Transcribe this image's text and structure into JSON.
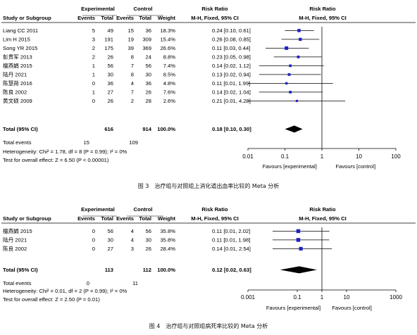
{
  "figures": [
    {
      "caption": "图 3　治疗组与对照组上消化道出血率比较的 Meta 分析",
      "headers": {
        "group_experimental": "Experimental",
        "group_control": "Control",
        "rr_top": "Risk Ratio",
        "rr_bottom": "M-H, Fixed, 95% CI",
        "plot_top": "Risk Ratio",
        "plot_bottom": "M-H, Fixed, 95% CI",
        "study": "Study or Subgroup",
        "events": "Events",
        "total": "Total",
        "weight": "Weight"
      },
      "studies": [
        {
          "name": "Liang CC 2011",
          "e_events": "5",
          "e_total": "49",
          "c_events": "15",
          "c_total": "36",
          "weight": "18.3%",
          "ci_text": "0.24 [0.10, 0.61]"
        },
        {
          "name": "Lim H 2015",
          "e_events": "3",
          "e_total": "191",
          "c_events": "19",
          "c_total": "309",
          "weight": "15.4%",
          "ci_text": "0.26 [0.08, 0.85]"
        },
        {
          "name": "Song YR 2015",
          "e_events": "2",
          "e_total": "175",
          "c_events": "39",
          "c_total": "369",
          "weight": "26.6%",
          "ci_text": "0.11 [0.03, 0.44]"
        },
        {
          "name": "彭贵军 2013",
          "e_events": "2",
          "e_total": "26",
          "c_events": "8",
          "c_total": "24",
          "weight": "8.8%",
          "ci_text": "0.23 [0.05, 0.98]"
        },
        {
          "name": "檀燕娟 2015",
          "e_events": "1",
          "e_total": "56",
          "c_events": "7",
          "c_total": "56",
          "weight": "7.4%",
          "ci_text": "0.14 [0.02, 1.12]"
        },
        {
          "name": "陆丹 2021",
          "e_events": "1",
          "e_total": "30",
          "c_events": "8",
          "c_total": "30",
          "weight": "8.5%",
          "ci_text": "0.13 [0.02, 0.94]"
        },
        {
          "name": "陈慧荷 2016",
          "e_events": "0",
          "e_total": "36",
          "c_events": "4",
          "c_total": "36",
          "weight": "4.8%",
          "ci_text": "0.11 [0.01, 1.99]"
        },
        {
          "name": "陈良 2002",
          "e_events": "1",
          "e_total": "27",
          "c_events": "7",
          "c_total": "26",
          "weight": "7.6%",
          "ci_text": "0.14 [0.02, 1.04]"
        },
        {
          "name": "黄文硕 2009",
          "e_events": "0",
          "e_total": "26",
          "c_events": "2",
          "c_total": "28",
          "weight": "2.6%",
          "ci_text": "0.21 [0.01, 4.28]"
        }
      ],
      "total": {
        "label": "Total (95% CI)",
        "e_total": "616",
        "c_total": "914",
        "weight": "100.0%",
        "ci_text": "0.18 [0.10, 0.30]"
      },
      "total_events": {
        "label": "Total events",
        "e": "15",
        "c": "109"
      },
      "heterogeneity": "Heterogeneity: Chi² = 1.78, df = 8 (P = 0.99); I² = 0%",
      "overall_test": "Test for overall effect: Z = 6.50 (P < 0.00001)",
      "favours_left": "Favours [experimental]",
      "favours_right": "Favours [control]"
    },
    {
      "caption": "图 4　治疗组与对照组病死率比较的 Meta 分析",
      "headers": {
        "group_experimental": "Experimental",
        "group_control": "Control",
        "rr_top": "Risk Ratio",
        "rr_bottom": "M-H, Fixed, 95% CI",
        "plot_top": "Risk Ratio",
        "plot_bottom": "M-H, Fixed, 95% CI",
        "study": "Study or Subgroup",
        "events": "Events",
        "total": "Total",
        "weight": "Weight"
      },
      "studies": [
        {
          "name": "檀燕娟 2015",
          "e_events": "0",
          "e_total": "56",
          "c_events": "4",
          "c_total": "56",
          "weight": "35.8%",
          "ci_text": "0.11 [0.01, 2.02]"
        },
        {
          "name": "陆丹 2021",
          "e_events": "0",
          "e_total": "30",
          "c_events": "4",
          "c_total": "30",
          "weight": "35.8%",
          "ci_text": "0.11 [0.01, 1.98]"
        },
        {
          "name": "陈良 2002",
          "e_events": "0",
          "e_total": "27",
          "c_events": "3",
          "c_total": "26",
          "weight": "28.4%",
          "ci_text": "0.14 [0.01, 2.54]"
        }
      ],
      "total": {
        "label": "Total (95% CI)",
        "e_total": "113",
        "c_total": "112",
        "weight": "100.0%",
        "ci_text": "0.12 [0.02, 0.63]"
      },
      "total_events": {
        "label": "Total events",
        "e": "0",
        "c": "11"
      },
      "heterogeneity": "Heterogeneity: Chi² = 0.01, df = 2 (P = 0.99); I² = 0%",
      "overall_test": "Test for overall effect: Z = 2.50 (P = 0.01)",
      "favours_left": "Favours [experimental]",
      "favours_right": "Favours [control]"
    }
  ],
  "colors": {
    "marker": "#1f22c9",
    "diamond": "#000000",
    "text": "#000000"
  },
  "chart_data": [
    {
      "type": "forest",
      "scale": "log",
      "xlim": [
        0.01,
        100
      ],
      "ticks": [
        "0.01",
        "0.1",
        "1",
        "10",
        "100"
      ],
      "tick_values": [
        0.01,
        0.1,
        1,
        10,
        100
      ],
      "reference_line": 1,
      "series": [
        {
          "name": "Liang CC 2011",
          "rr": 0.24,
          "lo": 0.1,
          "hi": 0.61,
          "weight": 18.3
        },
        {
          "name": "Lim H 2015",
          "rr": 0.26,
          "lo": 0.08,
          "hi": 0.85,
          "weight": 15.4
        },
        {
          "name": "Song YR 2015",
          "rr": 0.11,
          "lo": 0.03,
          "hi": 0.44,
          "weight": 26.6
        },
        {
          "name": "彭贵军 2013",
          "rr": 0.23,
          "lo": 0.05,
          "hi": 0.98,
          "weight": 8.8
        },
        {
          "name": "檀燕娟 2015",
          "rr": 0.14,
          "lo": 0.02,
          "hi": 1.12,
          "weight": 7.4
        },
        {
          "name": "陆丹 2021",
          "rr": 0.13,
          "lo": 0.02,
          "hi": 0.94,
          "weight": 8.5
        },
        {
          "name": "陈慧荷 2016",
          "rr": 0.11,
          "lo": 0.01,
          "hi": 1.99,
          "weight": 4.8
        },
        {
          "name": "陈良 2002",
          "rr": 0.14,
          "lo": 0.02,
          "hi": 1.04,
          "weight": 7.6
        },
        {
          "name": "黄文硕 2009",
          "rr": 0.21,
          "lo": 0.01,
          "hi": 4.28,
          "weight": 2.6
        }
      ],
      "overall": {
        "rr": 0.18,
        "lo": 0.1,
        "hi": 0.3
      }
    },
    {
      "type": "forest",
      "scale": "log",
      "xlim": [
        0.001,
        1000
      ],
      "ticks": [
        "0.001",
        "0.1",
        "1",
        "10",
        "1000"
      ],
      "tick_values": [
        0.001,
        0.1,
        1,
        10,
        1000
      ],
      "reference_line": 1,
      "series": [
        {
          "name": "檀燕娟 2015",
          "rr": 0.11,
          "lo": 0.01,
          "hi": 2.02,
          "weight": 35.8
        },
        {
          "name": "陆丹 2021",
          "rr": 0.11,
          "lo": 0.01,
          "hi": 1.98,
          "weight": 35.8
        },
        {
          "name": "陈良 2002",
          "rr": 0.14,
          "lo": 0.01,
          "hi": 2.54,
          "weight": 28.4
        }
      ],
      "overall": {
        "rr": 0.12,
        "lo": 0.02,
        "hi": 0.63
      }
    }
  ]
}
